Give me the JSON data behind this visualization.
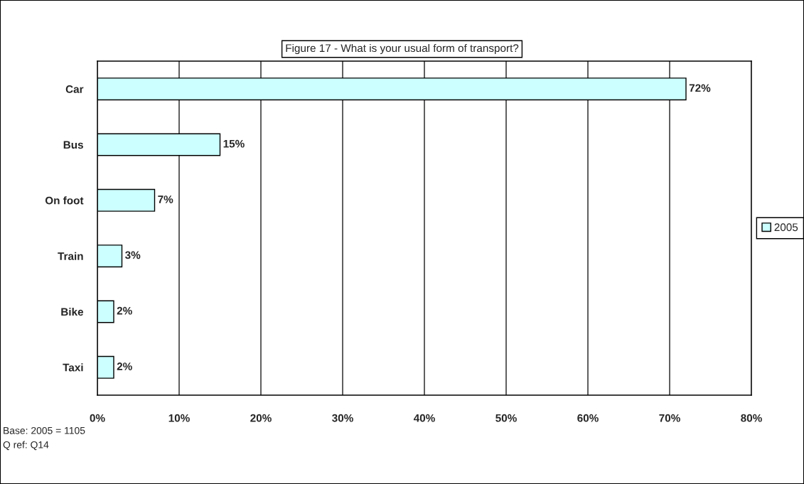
{
  "chart_data": {
    "type": "bar",
    "orientation": "horizontal",
    "title": "Figure 17 - What is your usual form of transport?",
    "categories": [
      "Car",
      "Bus",
      "On foot",
      "Train",
      "Bike",
      "Taxi"
    ],
    "series": [
      {
        "name": "2005",
        "color": "#ccffff",
        "values": [
          72,
          15,
          7,
          3,
          2,
          2
        ],
        "value_labels": [
          "72%",
          "15%",
          "7%",
          "3%",
          "2%",
          "2%"
        ]
      }
    ],
    "xlim": [
      0,
      80
    ],
    "xticks": [
      {
        "value": 0,
        "label": "0%"
      },
      {
        "value": 10,
        "label": "10%"
      },
      {
        "value": 20,
        "label": "20%"
      },
      {
        "value": 30,
        "label": "30%"
      },
      {
        "value": 40,
        "label": "40%"
      },
      {
        "value": 50,
        "label": "50%"
      },
      {
        "value": 60,
        "label": "60%"
      },
      {
        "value": 70,
        "label": "70%"
      },
      {
        "value": 80,
        "label": "80%"
      }
    ],
    "grid": "x",
    "legend": "right",
    "annotations": [
      "Base: 2005 = 1105",
      "Q ref: Q14"
    ]
  }
}
